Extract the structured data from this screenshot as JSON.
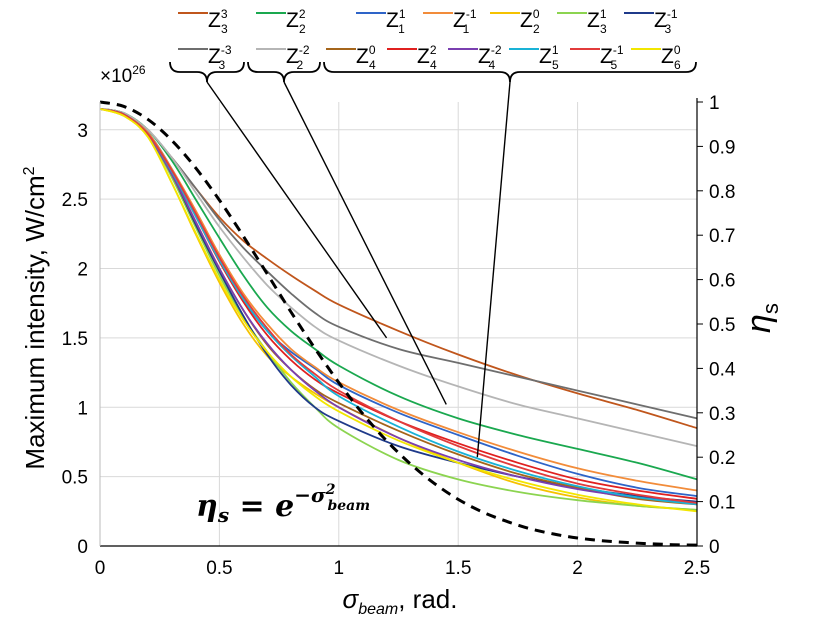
{
  "chart_data": {
    "type": "line",
    "xlabel": "σbeam, rad.",
    "xlabel_main": "σ",
    "xlabel_sub": "beam",
    "xlabel_tail": ", rad.",
    "ylabel": "Maximum intensity, W/cm²",
    "ylabel_text": "Maximum intensity, W/cm",
    "ylabel_sup": "2",
    "y2label": "ηs",
    "y2label_main": "η",
    "y2label_sub": "s",
    "scale_multiplier": "×10",
    "scale_exponent": "26",
    "formula": {
      "lhs": "η",
      "lhs_sub": "s",
      "eq": " = e",
      "exp": "−σ",
      "exp_sup": "2",
      "exp_sub": "beam"
    },
    "xlim": [
      0,
      2.5
    ],
    "ylim": [
      0,
      3.2
    ],
    "y2lim": [
      0,
      1.0
    ],
    "x_ticks": [
      "0",
      "0.5",
      "1",
      "1.5",
      "2",
      "2.5"
    ],
    "y_ticks": [
      "0",
      "0.5",
      "1",
      "1.5",
      "2",
      "2.5",
      "3"
    ],
    "y2_ticks": [
      "0",
      "0.1",
      "0.2",
      "0.3",
      "0.4",
      "0.5",
      "0.6",
      "0.7",
      "0.8",
      "0.9",
      "1"
    ],
    "grid": true,
    "x": [
      0,
      0.1,
      0.2,
      0.3,
      0.4,
      0.5,
      0.6,
      0.7,
      0.8,
      0.9,
      1.0,
      1.25,
      1.5,
      1.75,
      2.0,
      2.25,
      2.5
    ],
    "series": [
      {
        "name": "Z_3^3",
        "zn": "3",
        "zm": "3",
        "color": "#c0561c",
        "values": [
          3.15,
          3.12,
          3.0,
          2.8,
          2.58,
          2.37,
          2.2,
          2.07,
          1.95,
          1.84,
          1.74,
          1.55,
          1.38,
          1.23,
          1.1,
          0.98,
          0.85
        ]
      },
      {
        "name": "Z_3^-3",
        "zn": "3",
        "zm": "-3",
        "color": "#6e6e6e",
        "values": [
          3.15,
          3.12,
          3.0,
          2.8,
          2.58,
          2.35,
          2.15,
          1.98,
          1.82,
          1.68,
          1.58,
          1.42,
          1.32,
          1.22,
          1.12,
          1.02,
          0.92
        ]
      },
      {
        "name": "Z_2^2",
        "zn": "2",
        "zm": "2",
        "color": "#1aa84f",
        "values": [
          3.15,
          3.12,
          3.0,
          2.78,
          2.5,
          2.22,
          1.95,
          1.72,
          1.55,
          1.42,
          1.3,
          1.08,
          0.92,
          0.8,
          0.7,
          0.6,
          0.48
        ]
      },
      {
        "name": "Z_2^-2",
        "zn": "2",
        "zm": "-2",
        "color": "#b5b5b5",
        "values": [
          3.15,
          3.12,
          3.0,
          2.8,
          2.55,
          2.3,
          2.08,
          1.88,
          1.72,
          1.58,
          1.48,
          1.3,
          1.15,
          1.02,
          0.92,
          0.82,
          0.72
        ]
      },
      {
        "name": "Z_1^1",
        "zn": "1",
        "zm": "1",
        "color": "#2e64c8",
        "values": [
          3.15,
          3.11,
          2.98,
          2.72,
          2.4,
          2.08,
          1.78,
          1.55,
          1.4,
          1.28,
          1.16,
          0.96,
          0.8,
          0.65,
          0.52,
          0.42,
          0.36
        ]
      },
      {
        "name": "Z_1^-1",
        "zn": "1",
        "zm": "-1",
        "color": "#f28c3a",
        "values": [
          3.15,
          3.11,
          2.98,
          2.72,
          2.42,
          2.1,
          1.82,
          1.6,
          1.42,
          1.29,
          1.18,
          0.98,
          0.82,
          0.68,
          0.56,
          0.47,
          0.4
        ]
      },
      {
        "name": "Z_2^0",
        "zn": "2",
        "zm": "0",
        "color": "#f5c200",
        "values": [
          3.15,
          3.1,
          2.95,
          2.62,
          2.25,
          1.9,
          1.6,
          1.37,
          1.22,
          1.1,
          1.0,
          0.78,
          0.6,
          0.45,
          0.35,
          0.29,
          0.26
        ]
      },
      {
        "name": "Z_3^1",
        "zn": "3",
        "zm": "1",
        "color": "#8cd450",
        "values": [
          3.15,
          3.11,
          2.96,
          2.66,
          2.3,
          1.95,
          1.65,
          1.4,
          1.18,
          1.0,
          0.85,
          0.62,
          0.48,
          0.39,
          0.33,
          0.29,
          0.26
        ]
      },
      {
        "name": "Z_3^-1",
        "zn": "3",
        "zm": "-1",
        "color": "#1f3a8a",
        "values": [
          3.15,
          3.11,
          2.96,
          2.68,
          2.32,
          1.98,
          1.66,
          1.38,
          1.16,
          1.0,
          0.9,
          0.72,
          0.6,
          0.5,
          0.42,
          0.36,
          0.32
        ]
      },
      {
        "name": "Z_4^0",
        "zn": "4",
        "zm": "0",
        "color": "#a5651b",
        "values": [
          3.15,
          3.11,
          2.96,
          2.68,
          2.34,
          2.0,
          1.7,
          1.45,
          1.27,
          1.13,
          1.03,
          0.83,
          0.66,
          0.52,
          0.42,
          0.34,
          0.3
        ]
      },
      {
        "name": "Z_4^2",
        "zn": "4",
        "zm": "2",
        "color": "#e0201f",
        "values": [
          3.15,
          3.11,
          2.97,
          2.7,
          2.38,
          2.05,
          1.76,
          1.52,
          1.34,
          1.2,
          1.1,
          0.9,
          0.74,
          0.6,
          0.48,
          0.4,
          0.34
        ]
      },
      {
        "name": "Z_4^-2",
        "zn": "4",
        "zm": "-2",
        "color": "#7a3fb0",
        "values": [
          3.15,
          3.11,
          2.96,
          2.68,
          2.34,
          2.0,
          1.7,
          1.46,
          1.27,
          1.12,
          1.0,
          0.78,
          0.62,
          0.5,
          0.41,
          0.35,
          0.31
        ]
      },
      {
        "name": "Z_5^1",
        "zn": "5",
        "zm": "1",
        "color": "#19b2d6",
        "values": [
          3.15,
          3.11,
          2.97,
          2.7,
          2.38,
          2.06,
          1.78,
          1.55,
          1.37,
          1.22,
          1.08,
          0.86,
          0.68,
          0.54,
          0.43,
          0.35,
          0.3
        ]
      },
      {
        "name": "Z_5^-1",
        "zn": "5",
        "zm": "-1",
        "color": "#e23b3b",
        "values": [
          3.15,
          3.11,
          2.97,
          2.71,
          2.4,
          2.08,
          1.8,
          1.57,
          1.38,
          1.24,
          1.12,
          0.9,
          0.72,
          0.57,
          0.45,
          0.37,
          0.31
        ]
      },
      {
        "name": "Z_6^0",
        "zn": "6",
        "zm": "0",
        "color": "#f2e600",
        "values": [
          3.15,
          3.1,
          2.95,
          2.62,
          2.26,
          1.92,
          1.63,
          1.4,
          1.22,
          1.08,
          0.97,
          0.76,
          0.6,
          0.47,
          0.37,
          0.3,
          0.25
        ]
      }
    ],
    "eta_curve": {
      "name": "ηs = e^(−σbeam²)",
      "color": "#000000",
      "style": "dashed",
      "x": [
        0,
        0.1,
        0.2,
        0.3,
        0.4,
        0.5,
        0.6,
        0.7,
        0.8,
        0.9,
        1.0,
        1.1,
        1.2,
        1.3,
        1.4,
        1.5,
        1.6,
        1.7,
        1.8,
        1.9,
        2.0,
        2.1,
        2.2,
        2.3,
        2.4,
        2.5
      ],
      "values": [
        1.0,
        0.99,
        0.961,
        0.914,
        0.852,
        0.779,
        0.698,
        0.613,
        0.527,
        0.445,
        0.368,
        0.298,
        0.237,
        0.185,
        0.141,
        0.105,
        0.077,
        0.056,
        0.039,
        0.027,
        0.018,
        0.012,
        0.008,
        0.005,
        0.003,
        0.002
      ]
    },
    "legend": {
      "placement": "top",
      "groups": [
        {
          "label": "group-z33",
          "members": [
            "Z_3^3",
            "Z_3^-3"
          ]
        },
        {
          "label": "group-z22",
          "members": [
            "Z_2^2",
            "Z_2^-2"
          ]
        },
        {
          "label": "group-rest",
          "members": [
            "Z_1^1",
            "Z_1^-1",
            "Z_2^0",
            "Z_3^1",
            "Z_3^-1",
            "Z_4^0",
            "Z_4^2",
            "Z_4^-2",
            "Z_5^1",
            "Z_5^-1",
            "Z_6^0"
          ]
        }
      ]
    }
  }
}
